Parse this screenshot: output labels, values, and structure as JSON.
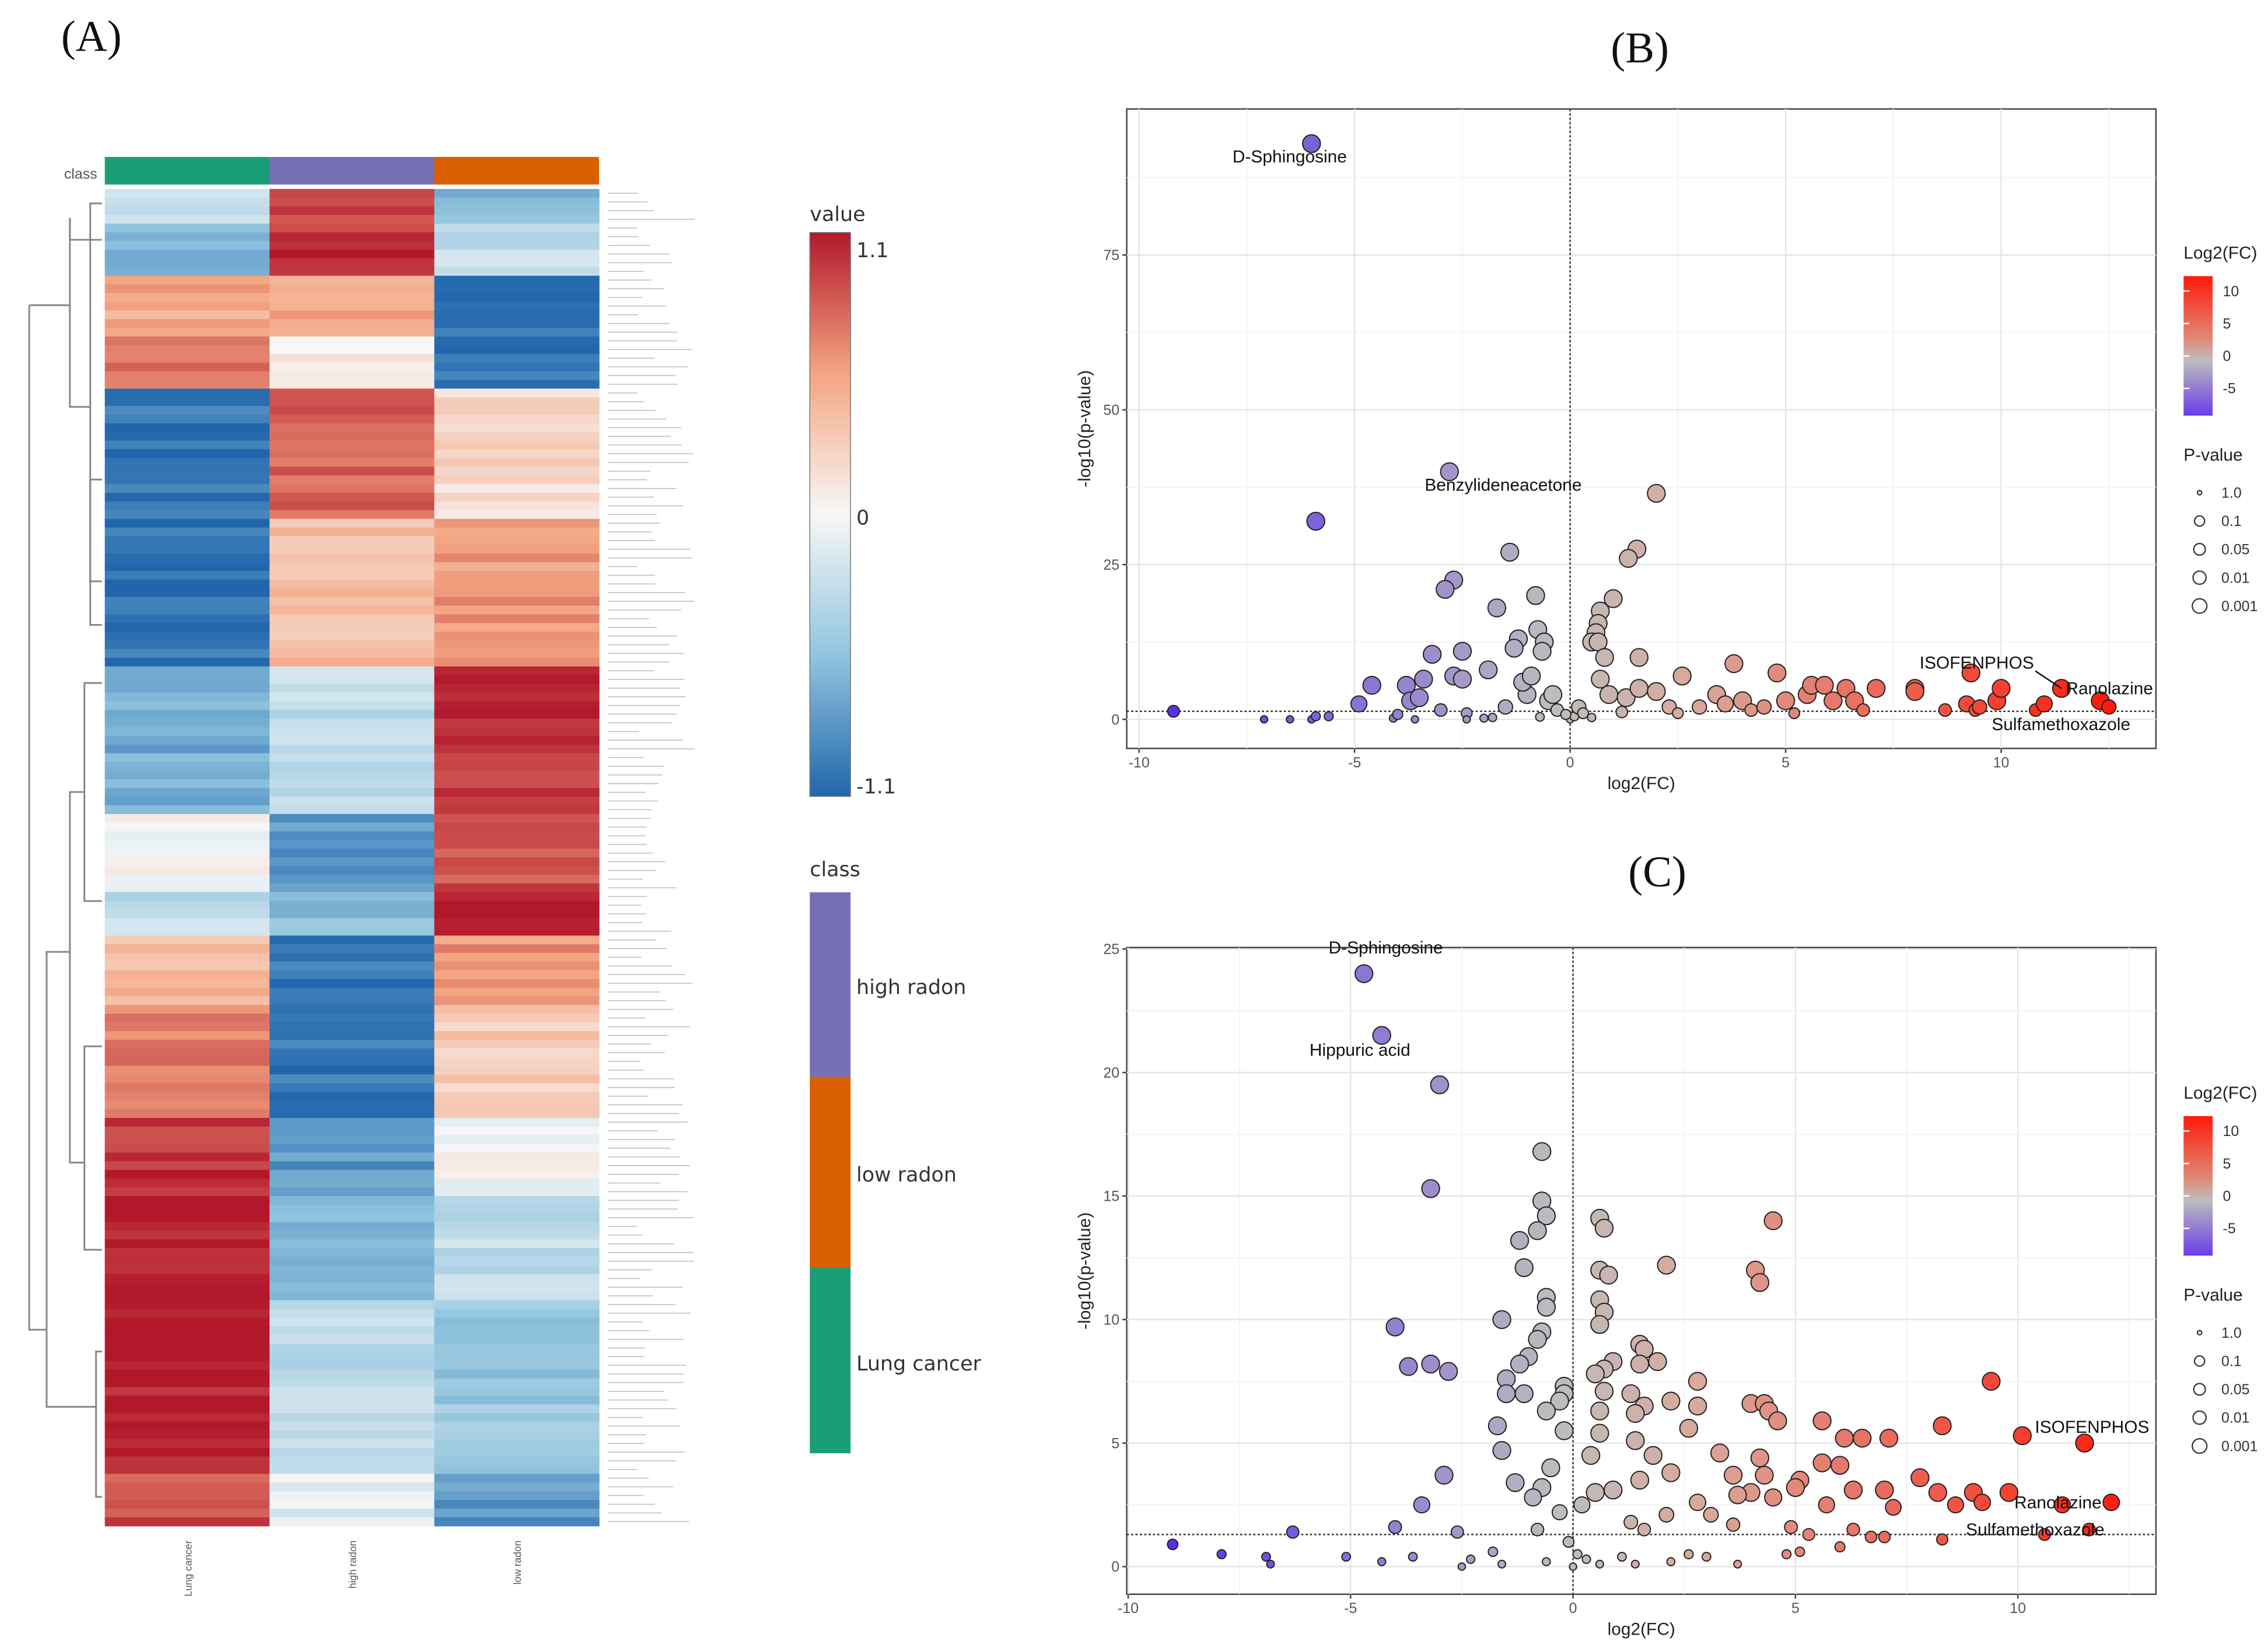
{
  "panels": {
    "a": "(A)",
    "b": "(B)",
    "c": "(C)"
  },
  "chart_data": [
    {
      "type": "heatmap",
      "class_label": "class",
      "columns": [
        "Lung cancer",
        "high radon",
        "low radon"
      ],
      "column_classes": [
        "Lung cancer",
        "high radon",
        "low radon"
      ],
      "class_colors": {
        "Lung cancer": "#1b9e77",
        "high radon": "#7570b3",
        "low radon": "#d95f02"
      },
      "value_legend": {
        "title": "value",
        "max_label": "1.1",
        "mid_label": "0",
        "min_label": "-1.1",
        "range": [
          -1.1,
          1.1
        ]
      },
      "class_legend": {
        "title": "class",
        "items": [
          "high radon",
          "low radon",
          "Lung cancer"
        ]
      },
      "row_blocks": [
        {
          "rows": 4,
          "values": [
            -0.2,
            0.9,
            -0.6
          ]
        },
        {
          "rows": 6,
          "values": [
            -0.6,
            1.0,
            -0.3
          ]
        },
        {
          "rows": 7,
          "values": [
            0.5,
            0.5,
            -1.0
          ]
        },
        {
          "rows": 6,
          "values": [
            0.7,
            0.1,
            -1.0
          ]
        },
        {
          "rows": 15,
          "values": [
            -1.0,
            0.8,
            0.2
          ]
        },
        {
          "rows": 17,
          "values": [
            -1.0,
            0.4,
            0.6
          ]
        },
        {
          "rows": 17,
          "values": [
            -0.7,
            -0.3,
            1.0
          ]
        },
        {
          "rows": 9,
          "values": [
            0.0,
            -0.8,
            0.9
          ]
        },
        {
          "rows": 5,
          "values": [
            -0.3,
            -0.6,
            1.1
          ]
        },
        {
          "rows": 8,
          "values": [
            0.4,
            -1.0,
            0.6
          ]
        },
        {
          "rows": 13,
          "values": [
            0.7,
            -1.0,
            0.3
          ]
        },
        {
          "rows": 9,
          "values": [
            1.0,
            -0.8,
            0.0
          ]
        },
        {
          "rows": 12,
          "values": [
            1.1,
            -0.6,
            -0.3
          ]
        },
        {
          "rows": 20,
          "values": [
            1.1,
            -0.3,
            -0.5
          ]
        },
        {
          "rows": 6,
          "values": [
            0.9,
            -0.1,
            -0.8
          ]
        }
      ]
    },
    {
      "type": "scatter",
      "title": "",
      "xlabel": "log2(FC)",
      "ylabel": "-log10(p-value)",
      "xlim": [
        -10.5,
        13.5
      ],
      "ylim": [
        -4.5,
        99
      ],
      "xticks": [
        -10,
        -5,
        0,
        5,
        10
      ],
      "yticks": [
        0,
        25,
        50,
        75
      ],
      "threshold_y": 1.3,
      "color_legend": {
        "title": "Log2(FC)",
        "ticks": [
          10,
          5,
          0,
          -5
        ]
      },
      "size_legend": {
        "title": "P-value",
        "items": [
          "1.0",
          "0.1",
          "0.05",
          "0.01",
          "0.001"
        ]
      },
      "annotations": [
        {
          "label": "D-Sphingosine",
          "x": -6.0,
          "y": 93
        },
        {
          "label": "Benzylideneacetone",
          "x": -2.8,
          "y": 40
        },
        {
          "label": "ISOFENPHOS",
          "x": 9.3,
          "y": 7.5
        },
        {
          "label": "Ranolazine",
          "x": 11.4,
          "y": 5
        },
        {
          "label": "Sulfamethoxazole",
          "x": 12.3,
          "y": 2
        }
      ],
      "points": [
        [
          -5.9,
          32
        ],
        [
          2,
          36.5
        ],
        [
          -1.4,
          27
        ],
        [
          1.55,
          27.5
        ],
        [
          1.35,
          26
        ],
        [
          -2.7,
          22.5
        ],
        [
          -2.9,
          21
        ],
        [
          -0.8,
          20
        ],
        [
          1,
          19.5
        ],
        [
          -1.7,
          18
        ],
        [
          0.7,
          17.5
        ],
        [
          0.65,
          15.5
        ],
        [
          0.6,
          14
        ],
        [
          -0.75,
          14.5
        ],
        [
          -1.2,
          13
        ],
        [
          -0.6,
          12.5
        ],
        [
          0.5,
          12.5
        ],
        [
          0.65,
          12.5
        ],
        [
          -2.5,
          11
        ],
        [
          -3.2,
          10.5
        ],
        [
          1.6,
          10
        ],
        [
          0.8,
          10
        ],
        [
          -1.3,
          11.5
        ],
        [
          -0.65,
          11
        ],
        [
          3.8,
          9
        ],
        [
          4.8,
          7.5
        ],
        [
          2.6,
          7
        ],
        [
          -3.4,
          6.5
        ],
        [
          -2.7,
          7
        ],
        [
          -2.5,
          6.5
        ],
        [
          -1.9,
          8
        ],
        [
          -4.6,
          5.5
        ],
        [
          -3.8,
          5.5
        ],
        [
          -3.7,
          3
        ],
        [
          -3.5,
          3.5
        ],
        [
          -4.9,
          2.5
        ],
        [
          -3,
          1.5
        ],
        [
          -2.4,
          1
        ],
        [
          -9.2,
          1.3
        ],
        [
          -7.1,
          0
        ],
        [
          -6.5,
          0
        ],
        [
          -6,
          0
        ],
        [
          -5.9,
          0.5
        ],
        [
          -5.6,
          0.5
        ],
        [
          -4.1,
          0.2
        ],
        [
          -4,
          0.8
        ],
        [
          -3.6,
          0
        ],
        [
          -2.4,
          0
        ],
        [
          -2,
          0.2
        ],
        [
          -1.8,
          0.3
        ],
        [
          -1.5,
          2
        ],
        [
          -1,
          4
        ],
        [
          -0.5,
          3
        ],
        [
          -0.3,
          1.5
        ],
        [
          0,
          0
        ],
        [
          0.1,
          0.5
        ],
        [
          -0.1,
          0.8
        ],
        [
          0.2,
          2
        ],
        [
          0.3,
          1
        ],
        [
          0.9,
          4
        ],
        [
          1.3,
          3.5
        ],
        [
          1.6,
          5
        ],
        [
          2,
          4.5
        ],
        [
          2.3,
          2
        ],
        [
          2.5,
          1
        ],
        [
          3,
          2
        ],
        [
          3.4,
          4
        ],
        [
          3.6,
          2.5
        ],
        [
          4,
          3
        ],
        [
          4.2,
          1.5
        ],
        [
          4.5,
          2
        ],
        [
          5,
          3
        ],
        [
          5.2,
          1
        ],
        [
          5.5,
          4
        ],
        [
          5.6,
          5.5
        ],
        [
          5.9,
          5.5
        ],
        [
          6.1,
          3
        ],
        [
          6.4,
          5
        ],
        [
          6.6,
          3
        ],
        [
          6.8,
          1.5
        ],
        [
          7.1,
          5
        ],
        [
          8,
          5
        ],
        [
          8,
          4.5
        ],
        [
          8.7,
          1.5
        ],
        [
          9.2,
          2.5
        ],
        [
          9.4,
          1.5
        ],
        [
          9.5,
          2
        ],
        [
          9.9,
          3
        ],
        [
          10,
          5
        ],
        [
          10.8,
          1.5
        ],
        [
          11,
          2.5
        ],
        [
          12.3,
          3
        ],
        [
          12.5,
          2
        ],
        [
          1.2,
          1.2
        ],
        [
          0.5,
          0.3
        ],
        [
          -0.7,
          0.4
        ],
        [
          0.7,
          6.5
        ],
        [
          -1.1,
          6
        ],
        [
          -0.9,
          7
        ],
        [
          -0.4,
          4
        ],
        [
          -6.0,
          93
        ],
        [
          -2.8,
          40
        ],
        [
          9.3,
          7.5
        ],
        [
          11.4,
          5
        ]
      ]
    },
    {
      "type": "scatter",
      "title": "",
      "xlabel": "log2(FC)",
      "ylabel": "-log10(p-value)",
      "xlim": [
        -10,
        13.1
      ],
      "ylim": [
        -1.1,
        25.1
      ],
      "xticks": [
        -10,
        -5,
        0,
        5,
        10
      ],
      "yticks": [
        0,
        5,
        10,
        15,
        20,
        25
      ],
      "threshold_y": 1.3,
      "color_legend": {
        "title": "Log2(FC)",
        "ticks": [
          10,
          5,
          0,
          -5
        ]
      },
      "size_legend": {
        "title": "P-value",
        "items": [
          "1.0",
          "0.1",
          "0.05",
          "0.01",
          "0.001"
        ]
      },
      "annotations": [
        {
          "label": "D-Sphingosine",
          "x": -4.7,
          "y": 24
        },
        {
          "label": "Hippuric acid",
          "x": -4.3,
          "y": 21.5
        },
        {
          "label": "ISOFENPHOS",
          "x": 10.1,
          "y": 5.3
        },
        {
          "label": "Ranolazine",
          "x": 11.0,
          "y": 2.6
        },
        {
          "label": "Sulfamethoxazole",
          "x": 11.6,
          "y": 1.5
        }
      ],
      "points": [
        [
          -4.7,
          24
        ],
        [
          -4.3,
          21.5
        ],
        [
          10.1,
          5.3
        ],
        [
          11.5,
          5
        ],
        [
          11,
          2.5
        ],
        [
          11.6,
          1.5
        ],
        [
          12.1,
          2.6
        ],
        [
          -3,
          19.5
        ],
        [
          -0.7,
          16.8
        ],
        [
          -3.2,
          15.3
        ],
        [
          -0.7,
          14.8
        ],
        [
          -0.6,
          14.2
        ],
        [
          -0.8,
          13.6
        ],
        [
          -1.2,
          13.2
        ],
        [
          -1.1,
          12.1
        ],
        [
          0.6,
          14.1
        ],
        [
          0.7,
          13.7
        ],
        [
          4.5,
          14
        ],
        [
          2.1,
          12.2
        ],
        [
          4.1,
          12
        ],
        [
          4.2,
          11.5
        ],
        [
          0.6,
          12
        ],
        [
          0.8,
          11.8
        ],
        [
          0.6,
          10.8
        ],
        [
          0.7,
          10.3
        ],
        [
          0.6,
          9.8
        ],
        [
          -0.6,
          10.9
        ],
        [
          -0.6,
          10.5
        ],
        [
          -1.6,
          10
        ],
        [
          -4,
          9.7
        ],
        [
          -0.7,
          9.5
        ],
        [
          -0.8,
          9.2
        ],
        [
          1.5,
          9
        ],
        [
          1.6,
          8.8
        ],
        [
          -1.0,
          8.5
        ],
        [
          -1.2,
          8.2
        ],
        [
          -3.7,
          8.1
        ],
        [
          -3.2,
          8.2
        ],
        [
          -2.8,
          7.9
        ],
        [
          1.5,
          8.2
        ],
        [
          1.9,
          8.3
        ],
        [
          0.9,
          8.3
        ],
        [
          0.7,
          8
        ],
        [
          0.5,
          7.8
        ],
        [
          -1.5,
          7.6
        ],
        [
          -0.2,
          7.3
        ],
        [
          -0.2,
          7
        ],
        [
          2.8,
          7.5
        ],
        [
          9.4,
          7.5
        ],
        [
          0.7,
          7.1
        ],
        [
          -1.1,
          7
        ],
        [
          -1.5,
          7
        ],
        [
          -0.3,
          6.7
        ],
        [
          2.2,
          6.7
        ],
        [
          2.8,
          6.5
        ],
        [
          4,
          6.6
        ],
        [
          4.3,
          6.6
        ],
        [
          4.4,
          6.3
        ],
        [
          4.6,
          5.9
        ],
        [
          5.6,
          5.9
        ],
        [
          1.6,
          6.5
        ],
        [
          1.4,
          6.2
        ],
        [
          0.6,
          6.3
        ],
        [
          -0.6,
          6.3
        ],
        [
          -1.7,
          5.7
        ],
        [
          2.6,
          5.6
        ],
        [
          8.3,
          5.7
        ],
        [
          6.1,
          5.2
        ],
        [
          6.5,
          5.2
        ],
        [
          7.1,
          5.2
        ],
        [
          -1.6,
          4.7
        ],
        [
          3.3,
          4.6
        ],
        [
          4.2,
          4.4
        ],
        [
          1.8,
          4.5
        ],
        [
          1.4,
          5.1
        ],
        [
          -2.9,
          3.7
        ],
        [
          3.6,
          3.7
        ],
        [
          4.3,
          3.7
        ],
        [
          5.1,
          3.5
        ],
        [
          5.6,
          4.2
        ],
        [
          6,
          4.1
        ],
        [
          7.8,
          3.6
        ],
        [
          -1.3,
          3.4
        ],
        [
          1.5,
          3.5
        ],
        [
          2.2,
          3.8
        ],
        [
          -3.4,
          2.5
        ],
        [
          8.2,
          3
        ],
        [
          9,
          3
        ],
        [
          9.8,
          3
        ],
        [
          6.3,
          3.1
        ],
        [
          7,
          3.1
        ],
        [
          4,
          3
        ],
        [
          4.5,
          2.8
        ],
        [
          5,
          3.2
        ],
        [
          3.7,
          2.9
        ],
        [
          2.8,
          2.6
        ],
        [
          3.1,
          2.1
        ],
        [
          8.6,
          2.5
        ],
        [
          9.2,
          2.6
        ],
        [
          7.2,
          2.4
        ],
        [
          5.7,
          2.5
        ],
        [
          2.1,
          2.1
        ],
        [
          1.3,
          1.8
        ],
        [
          1.6,
          1.5
        ],
        [
          -6.3,
          1.4
        ],
        [
          -4,
          1.6
        ],
        [
          -2.6,
          1.4
        ],
        [
          -0.8,
          1.5
        ],
        [
          3.6,
          1.7
        ],
        [
          4.9,
          1.6
        ],
        [
          5.3,
          1.3
        ],
        [
          6.3,
          1.5
        ],
        [
          6.7,
          1.2
        ],
        [
          7,
          1.2
        ],
        [
          8.3,
          1.1
        ],
        [
          10.6,
          1.3
        ],
        [
          -9,
          0.9
        ],
        [
          -7.9,
          0.5
        ],
        [
          -6.9,
          0.4
        ],
        [
          -6.8,
          0.1
        ],
        [
          -5.1,
          0.4
        ],
        [
          -4.3,
          0.2
        ],
        [
          -3.6,
          0.4
        ],
        [
          -2.3,
          0.3
        ],
        [
          -2.5,
          0
        ],
        [
          -1.8,
          0.6
        ],
        [
          -1.6,
          0.1
        ],
        [
          -0.6,
          0.2
        ],
        [
          0,
          0
        ],
        [
          0.1,
          0.5
        ],
        [
          -0.1,
          1
        ],
        [
          0.3,
          0.3
        ],
        [
          0.6,
          0.1
        ],
        [
          1.1,
          0.4
        ],
        [
          1.4,
          0.1
        ],
        [
          2.2,
          0.2
        ],
        [
          2.6,
          0.5
        ],
        [
          3,
          0.4
        ],
        [
          3.7,
          0.1
        ],
        [
          4.8,
          0.5
        ],
        [
          5.1,
          0.6
        ],
        [
          6,
          0.8
        ],
        [
          0.2,
          2.5
        ],
        [
          -0.3,
          2.2
        ],
        [
          0.5,
          3
        ],
        [
          -0.5,
          4
        ],
        [
          0.4,
          4.5
        ],
        [
          0.9,
          3.1
        ],
        [
          -0.2,
          5.5
        ],
        [
          0.6,
          5.4
        ],
        [
          1.3,
          7
        ],
        [
          -0.7,
          3.2
        ],
        [
          -0.9,
          2.8
        ]
      ]
    }
  ]
}
